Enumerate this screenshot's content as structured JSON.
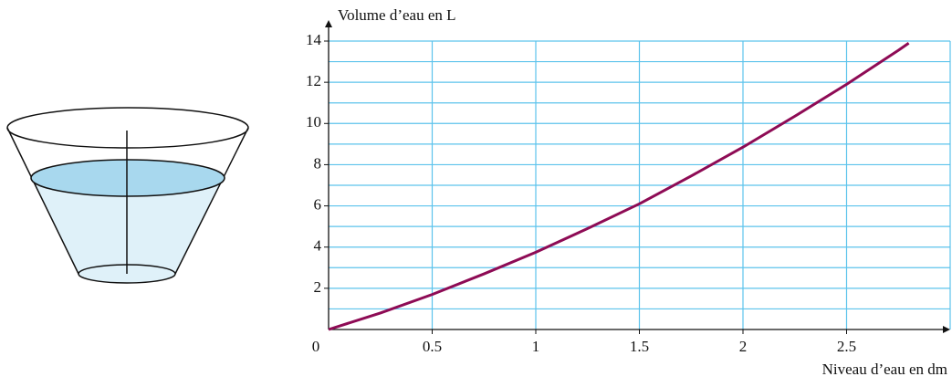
{
  "chart_data": {
    "type": "line",
    "y_label": "Volume d’eau en L",
    "x_label": "Niveau d’eau en dm",
    "x": [
      0,
      0.25,
      0.5,
      0.75,
      1,
      1.25,
      1.5,
      1.75,
      2,
      2.25,
      2.5,
      2.75,
      2.8
    ],
    "values": [
      0,
      0.8,
      1.7,
      2.7,
      3.75,
      4.9,
      6.1,
      7.45,
      8.85,
      10.35,
      11.9,
      13.55,
      13.9
    ],
    "color": "#8e0b55",
    "xlim": [
      0,
      3
    ],
    "ylim": [
      0,
      14
    ],
    "xticks": [
      0,
      0.5,
      1,
      1.5,
      2,
      2.5
    ],
    "yticks": [
      2,
      4,
      6,
      8,
      10,
      12,
      14
    ],
    "y_minor_ticks": [
      1,
      3,
      5,
      7,
      9,
      11,
      13
    ],
    "grid": true,
    "grid_color": "#5cc3ec"
  }
}
